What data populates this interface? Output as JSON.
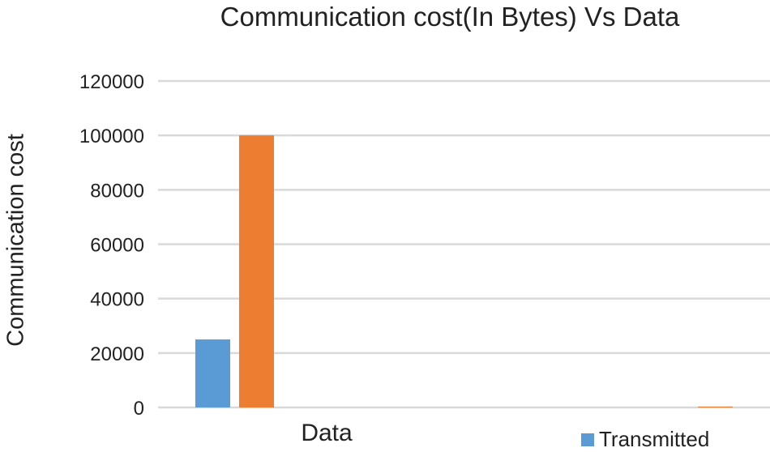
{
  "chart_data": {
    "type": "bar",
    "title": "Communication cost(In Bytes) Vs Data",
    "xlabel": "",
    "ylabel": "Communication cost",
    "categories": [
      "Data",
      ""
    ],
    "ylim": [
      0,
      120000
    ],
    "yticks": [
      0,
      20000,
      40000,
      60000,
      80000,
      100000,
      120000
    ],
    "grid": true,
    "legend_position": "bottom",
    "series": [
      {
        "name": "Transmitted",
        "color": "#5b9bd5",
        "values": [
          25000,
          0
        ]
      },
      {
        "color": "#ed7d31",
        "values": [
          100000,
          300
        ]
      }
    ]
  }
}
